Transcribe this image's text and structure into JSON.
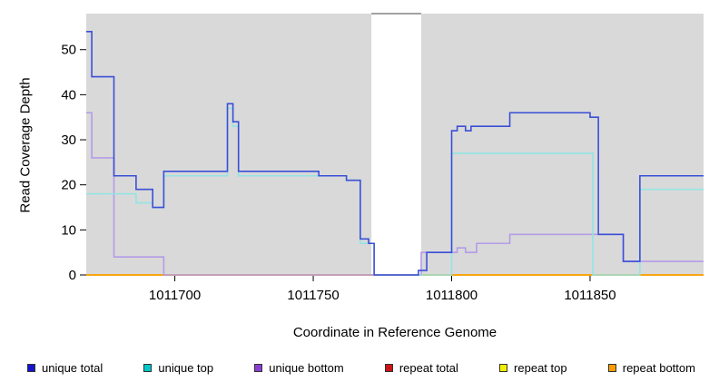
{
  "legend": {
    "items": [
      {
        "label": "unique total",
        "color": "#1414cc"
      },
      {
        "label": "unique top",
        "color": "#00c8c8"
      },
      {
        "label": "unique bottom",
        "color": "#8b3fd1"
      },
      {
        "label": "repeat total",
        "color": "#cc1414"
      },
      {
        "label": "repeat top",
        "color": "#f0f000"
      },
      {
        "label": "repeat bottom",
        "color": "#ff9d00"
      }
    ]
  },
  "chart_data": {
    "type": "line",
    "title": "",
    "xlabel": "Coordinate in Reference Genome",
    "ylabel": "Read Coverage Depth",
    "xlim": [
      1011668,
      1011891
    ],
    "ylim": [
      0,
      58
    ],
    "xticks": [
      1011700,
      1011750,
      1011800,
      1011850
    ],
    "yticks": [
      0,
      10,
      20,
      30,
      40,
      50
    ],
    "grid": false,
    "legend_position": "bottom",
    "band_color": "#d9d9d9",
    "background_bands": [
      [
        1011668,
        1011771
      ],
      [
        1011789,
        1011891
      ]
    ],
    "gap": [
      1011771,
      1011789
    ],
    "series": [
      {
        "name": "repeat total",
        "color": "#dd2222",
        "points": [
          [
            1011668,
            0
          ],
          [
            1011891,
            0
          ]
        ]
      },
      {
        "name": "repeat top",
        "color": "#eded00",
        "points": [
          [
            1011668,
            0
          ],
          [
            1011891,
            0
          ]
        ]
      },
      {
        "name": "repeat bottom",
        "color": "#ff9e00",
        "points": [
          [
            1011668,
            0
          ],
          [
            1011891,
            0
          ]
        ]
      },
      {
        "name": "unique bottom",
        "color": "#b39ce8",
        "points": [
          [
            1011668,
            36
          ],
          [
            1011670,
            26
          ],
          [
            1011678,
            4
          ],
          [
            1011696,
            0
          ],
          [
            1011789,
            5
          ],
          [
            1011802,
            6
          ],
          [
            1011805,
            5
          ],
          [
            1011809,
            7
          ],
          [
            1011821,
            9
          ],
          [
            1011862,
            3
          ],
          [
            1011891,
            3
          ]
        ]
      },
      {
        "name": "unique top",
        "color": "#93e4e4",
        "points": [
          [
            1011668,
            18
          ],
          [
            1011686,
            16
          ],
          [
            1011692,
            15
          ],
          [
            1011696,
            22
          ],
          [
            1011719,
            37
          ],
          [
            1011721,
            33
          ],
          [
            1011723,
            22
          ],
          [
            1011752,
            22
          ],
          [
            1011762,
            21
          ],
          [
            1011767,
            7
          ],
          [
            1011772,
            0
          ],
          [
            1011800,
            27
          ],
          [
            1011851,
            0
          ],
          [
            1011868,
            19
          ],
          [
            1011891,
            19
          ]
        ]
      },
      {
        "name": "unique total",
        "color": "#3a4fd7",
        "points": [
          [
            1011668,
            54
          ],
          [
            1011670,
            44
          ],
          [
            1011678,
            22
          ],
          [
            1011686,
            19
          ],
          [
            1011692,
            15
          ],
          [
            1011696,
            23
          ],
          [
            1011719,
            38
          ],
          [
            1011721,
            34
          ],
          [
            1011723,
            23
          ],
          [
            1011752,
            22
          ],
          [
            1011762,
            21
          ],
          [
            1011767,
            8
          ],
          [
            1011770,
            7
          ],
          [
            1011772,
            0
          ],
          [
            1011788,
            1
          ],
          [
            1011791,
            5
          ],
          [
            1011800,
            32
          ],
          [
            1011802,
            33
          ],
          [
            1011805,
            32
          ],
          [
            1011807,
            33
          ],
          [
            1011821,
            36
          ],
          [
            1011850,
            35
          ],
          [
            1011853,
            9
          ],
          [
            1011862,
            3
          ],
          [
            1011868,
            22
          ],
          [
            1011891,
            22
          ]
        ]
      }
    ]
  }
}
